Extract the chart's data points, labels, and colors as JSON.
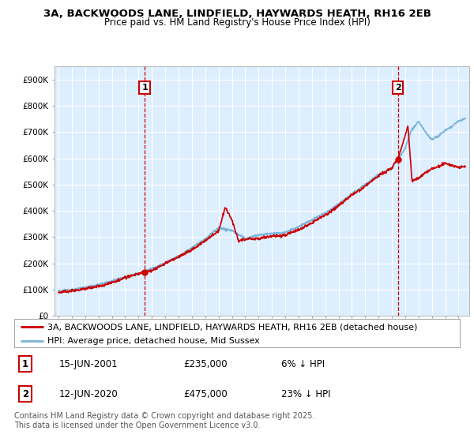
{
  "title1": "3A, BACKWOODS LANE, LINDFIELD, HAYWARDS HEATH, RH16 2EB",
  "title2": "Price paid vs. HM Land Registry's House Price Index (HPI)",
  "ylim": [
    0,
    950000
  ],
  "yticks": [
    0,
    100000,
    200000,
    300000,
    400000,
    500000,
    600000,
    700000,
    800000,
    900000
  ],
  "ytick_labels": [
    "£0",
    "£100K",
    "£200K",
    "£300K",
    "£400K",
    "£500K",
    "£600K",
    "£700K",
    "£800K",
    "£900K"
  ],
  "hpi_color": "#7ab4d8",
  "price_color": "#cc0000",
  "vline_color": "#cc0000",
  "annotation_box_color": "#cc0000",
  "chart_bg_color": "#ddeeff",
  "background_color": "#ffffff",
  "grid_color": "#ffffff",
  "legend_label_price": "3A, BACKWOODS LANE, LINDFIELD, HAYWARDS HEATH, RH16 2EB (detached house)",
  "legend_label_hpi": "HPI: Average price, detached house, Mid Sussex",
  "purchase1_year": 2001.46,
  "purchase1_price": 235000,
  "purchase2_year": 2020.45,
  "purchase2_price": 475000,
  "xmin": 1995,
  "xmax": 2026,
  "table_data": [
    {
      "num": "1",
      "date": "15-JUN-2001",
      "price": "£235,000",
      "hpi": "6% ↓ HPI"
    },
    {
      "num": "2",
      "date": "12-JUN-2020",
      "price": "£475,000",
      "hpi": "23% ↓ HPI"
    }
  ],
  "footer": "Contains HM Land Registry data © Crown copyright and database right 2025.\nThis data is licensed under the Open Government Licence v3.0.",
  "title_fontsize": 9.5,
  "subtitle_fontsize": 8.5,
  "tick_fontsize": 7.5,
  "legend_fontsize": 8,
  "table_fontsize": 8.5,
  "footer_fontsize": 7
}
